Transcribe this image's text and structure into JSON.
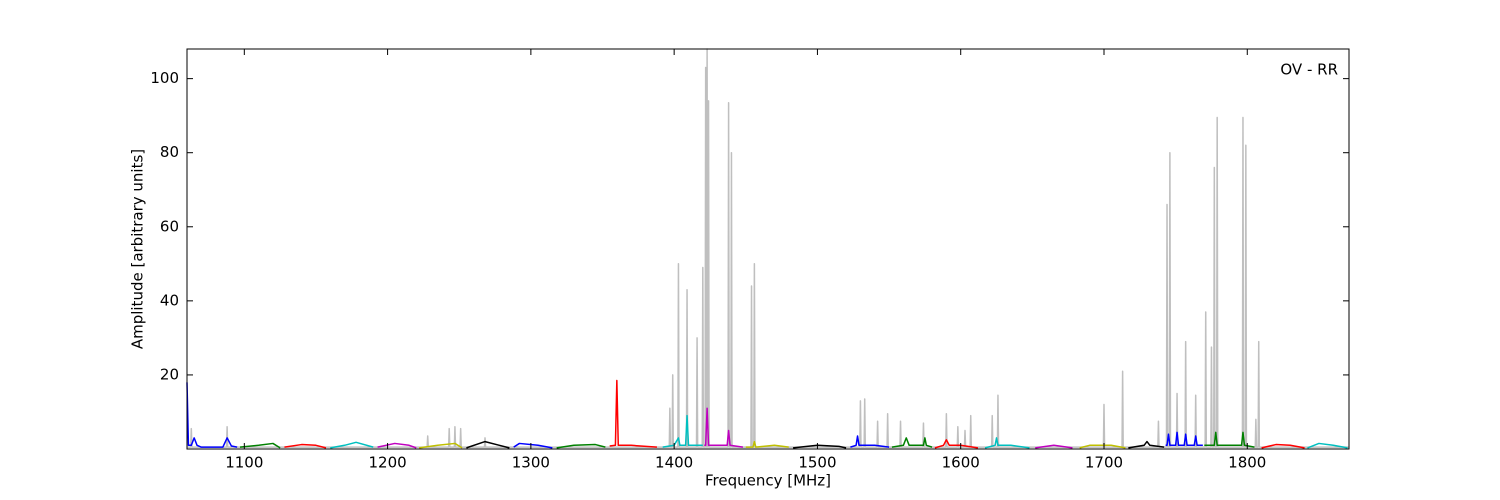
{
  "chart_data": {
    "type": "line",
    "xlabel": "Frequency [MHz]",
    "ylabel": "Amplitude [arbitrary units]",
    "annotation": "OV - RR",
    "xlim": [
      1060,
      1871
    ],
    "ylim": [
      0,
      108
    ],
    "xticks": [
      1100,
      1200,
      1300,
      1400,
      1500,
      1600,
      1700,
      1800
    ],
    "yticks": [
      20,
      40,
      60,
      80,
      100
    ],
    "series": [
      {
        "color": "#bfbfbf",
        "x": [
          1060,
          1062.6,
          1063,
          1063.4,
          1087.6,
          1088,
          1088.4,
          1227.6,
          1228,
          1228.4,
          1242.6,
          1243,
          1243.4,
          1246.6,
          1247,
          1247.4,
          1250.6,
          1251,
          1251.4,
          1267.6,
          1268,
          1268.4,
          1396.6,
          1397,
          1397.4,
          1398.6,
          1399,
          1399.4,
          1402.6,
          1403,
          1403.4,
          1408.6,
          1409,
          1409.4,
          1415.6,
          1416,
          1416.4,
          1419.6,
          1420,
          1420.4,
          1421.6,
          1422,
          1422.4,
          1422.6,
          1423,
          1423.4,
          1423.6,
          1424,
          1424.4,
          1437.6,
          1438,
          1438.4,
          1439.6,
          1440,
          1440.4,
          1453.6,
          1454,
          1454.4,
          1455.6,
          1456,
          1456.4,
          1529.6,
          1530,
          1530.4,
          1532.6,
          1533,
          1533.4,
          1541.6,
          1542,
          1542.4,
          1548.6,
          1549,
          1549.4,
          1557.6,
          1558,
          1558.4,
          1573.6,
          1574,
          1574.4,
          1589.6,
          1590,
          1590.4,
          1597.6,
          1598,
          1598.4,
          1602.6,
          1603,
          1603.4,
          1606.6,
          1607,
          1607.4,
          1621.6,
          1622,
          1622.4,
          1625.6,
          1626,
          1626.4,
          1699.6,
          1700,
          1700.4,
          1712.6,
          1713,
          1713.4,
          1737.6,
          1738,
          1738.4,
          1743.6,
          1744,
          1744.4,
          1745.6,
          1746,
          1746.4,
          1750.6,
          1751,
          1751.4,
          1756.6,
          1757,
          1757.4,
          1763.6,
          1764,
          1764.4,
          1770.6,
          1771,
          1771.4,
          1774.6,
          1775,
          1775.4,
          1776.6,
          1777,
          1777.4,
          1778.6,
          1779,
          1779.4,
          1796.6,
          1797,
          1797.4,
          1798.6,
          1799,
          1799.4,
          1805.6,
          1806,
          1806.4,
          1807.6,
          1808,
          1808.4,
          1871
        ],
        "values": [
          0.5,
          0.5,
          5.5,
          0.5,
          0.5,
          6,
          0.5,
          0.5,
          3.5,
          0.5,
          0.5,
          5.5,
          0.5,
          0.5,
          6,
          0.5,
          0.5,
          5.5,
          0.5,
          0.5,
          3,
          0.5,
          0.5,
          11,
          0.5,
          0.5,
          20,
          0.5,
          0.5,
          50,
          0.5,
          0.5,
          43,
          0.5,
          0.5,
          30,
          0.5,
          0.5,
          49,
          0.5,
          0.5,
          103,
          0.5,
          0.5,
          108,
          0.5,
          0.5,
          94,
          0.5,
          0.5,
          93.5,
          0.5,
          0.5,
          80,
          0.5,
          0.5,
          44,
          0.5,
          0.5,
          50,
          0.5,
          0.5,
          13,
          0.5,
          0.5,
          13.5,
          0.5,
          0.5,
          7.5,
          0.5,
          0.5,
          9.5,
          0.5,
          0.5,
          7.5,
          0.5,
          0.5,
          7,
          0.5,
          0.5,
          9.5,
          0.5,
          0.5,
          6,
          0.5,
          0.5,
          5,
          0.5,
          0.5,
          9,
          0.5,
          0.5,
          9,
          0.5,
          0.5,
          14.5,
          0.5,
          0.5,
          12,
          0.5,
          0.5,
          21,
          0.5,
          0.5,
          7.5,
          0.5,
          0.5,
          66,
          0.5,
          0.5,
          80,
          0.5,
          0.5,
          15,
          0.5,
          0.5,
          29,
          0.5,
          0.5,
          14.5,
          0.5,
          0.5,
          37,
          0.5,
          0.5,
          27.5,
          0.5,
          0.5,
          76,
          0.5,
          0.5,
          89.5,
          0.5,
          0.5,
          89.5,
          0.5,
          0.5,
          82,
          0.5,
          0.5,
          8,
          0.5,
          0.5,
          29,
          0.5,
          0.5
        ]
      },
      {
        "color": "#0000ff",
        "x": [
          1060,
          1061,
          1063,
          1065,
          1067,
          1070,
          1085,
          1088,
          1091,
          1095
        ],
        "values": [
          18,
          1,
          1,
          3,
          1,
          0.5,
          0.5,
          3,
          0.8,
          0.5
        ]
      },
      {
        "color": "#008000",
        "x": [
          1097,
          1110,
          1120,
          1125
        ],
        "values": [
          0.5,
          1,
          1.5,
          0.3
        ]
      },
      {
        "color": "#ff0000",
        "x": [
          1128,
          1140,
          1150,
          1157
        ],
        "values": [
          0.5,
          1.2,
          1,
          0.3
        ]
      },
      {
        "color": "#00bfbf",
        "x": [
          1160,
          1170,
          1178,
          1190
        ],
        "values": [
          0.3,
          1,
          1.8,
          0.5
        ]
      },
      {
        "color": "#bf00bf",
        "x": [
          1193,
          1205,
          1215,
          1220
        ],
        "values": [
          0.5,
          1.5,
          1,
          0.3
        ]
      },
      {
        "color": "#bfbf00",
        "x": [
          1222,
          1235,
          1247,
          1252
        ],
        "values": [
          0.3,
          1,
          1.5,
          0.3
        ]
      },
      {
        "color": "#000000",
        "x": [
          1255,
          1268,
          1278,
          1285
        ],
        "values": [
          0.3,
          2,
          1,
          0.3
        ]
      },
      {
        "color": "#0000ff",
        "x": [
          1288,
          1292,
          1305,
          1315
        ],
        "values": [
          0.5,
          1.5,
          1,
          0.3
        ]
      },
      {
        "color": "#008000",
        "x": [
          1318,
          1330,
          1345,
          1352
        ],
        "values": [
          0.3,
          1,
          1.2,
          0.5
        ]
      },
      {
        "color": "#ff0000",
        "x": [
          1355,
          1359,
          1360,
          1361,
          1370,
          1388
        ],
        "values": [
          0.8,
          1,
          18.5,
          1,
          1,
          0.5
        ]
      },
      {
        "color": "#00bfbf",
        "x": [
          1392,
          1400,
          1403,
          1404,
          1408,
          1409,
          1410,
          1416,
          1420
        ],
        "values": [
          0.5,
          1,
          3,
          1,
          1,
          9,
          1,
          1,
          1
        ]
      },
      {
        "color": "#bf00bf",
        "x": [
          1421,
          1422,
          1423,
          1424,
          1430,
          1437,
          1438,
          1439,
          1448
        ],
        "values": [
          1,
          1,
          11,
          1,
          1,
          1,
          5,
          1,
          0.5
        ]
      },
      {
        "color": "#bfbf00",
        "x": [
          1450,
          1455,
          1456,
          1457,
          1470,
          1480
        ],
        "values": [
          0.5,
          0.5,
          2,
          0.5,
          1,
          0.5
        ]
      },
      {
        "color": "#000000",
        "x": [
          1483,
          1500,
          1515,
          1520
        ],
        "values": [
          0.3,
          1,
          0.7,
          0.3
        ]
      },
      {
        "color": "#0000ff",
        "x": [
          1523,
          1527,
          1528,
          1529,
          1540,
          1550
        ],
        "values": [
          0.5,
          1,
          3.5,
          1,
          1,
          0.5
        ]
      },
      {
        "color": "#008000",
        "x": [
          1552,
          1560,
          1562,
          1564,
          1574,
          1575,
          1576,
          1580
        ],
        "values": [
          0.5,
          1,
          3,
          1,
          1,
          3,
          1,
          0.5
        ]
      },
      {
        "color": "#ff0000",
        "x": [
          1582,
          1588,
          1590,
          1592,
          1600,
          1612
        ],
        "values": [
          0.3,
          1,
          2.5,
          1,
          1,
          0.3
        ]
      },
      {
        "color": "#00bfbf",
        "x": [
          1617,
          1624,
          1625,
          1626,
          1635,
          1648
        ],
        "values": [
          0.3,
          1,
          3,
          1,
          1,
          0.3
        ]
      },
      {
        "color": "#bf00bf",
        "x": [
          1652,
          1665,
          1678
        ],
        "values": [
          0.3,
          1,
          0.3
        ]
      },
      {
        "color": "#bfbf00",
        "x": [
          1683,
          1690,
          1705,
          1715
        ],
        "values": [
          0.3,
          1,
          1,
          0.3
        ]
      },
      {
        "color": "#000000",
        "x": [
          1717,
          1728,
          1730,
          1732,
          1742
        ],
        "values": [
          0.3,
          1,
          2,
          1,
          0.5
        ]
      },
      {
        "color": "#0000ff",
        "x": [
          1743,
          1744,
          1745,
          1746,
          1750,
          1751,
          1752,
          1756,
          1757,
          1758,
          1763,
          1764,
          1765,
          1769
        ],
        "values": [
          1,
          1,
          4,
          1,
          1,
          4.5,
          1,
          1,
          4,
          1,
          1,
          3.5,
          1,
          1
        ]
      },
      {
        "color": "#008000",
        "x": [
          1770,
          1777,
          1778,
          1779,
          1790,
          1796,
          1797,
          1798,
          1805
        ],
        "values": [
          1,
          1,
          4.5,
          1,
          1,
          1,
          4.5,
          1,
          0.5
        ]
      },
      {
        "color": "#ff0000",
        "x": [
          1810,
          1820,
          1830,
          1840
        ],
        "values": [
          0.3,
          1.2,
          1,
          0.3
        ]
      },
      {
        "color": "#00bfbf",
        "x": [
          1842,
          1850,
          1860,
          1870
        ],
        "values": [
          0.3,
          1.5,
          1,
          0.3
        ]
      }
    ]
  }
}
